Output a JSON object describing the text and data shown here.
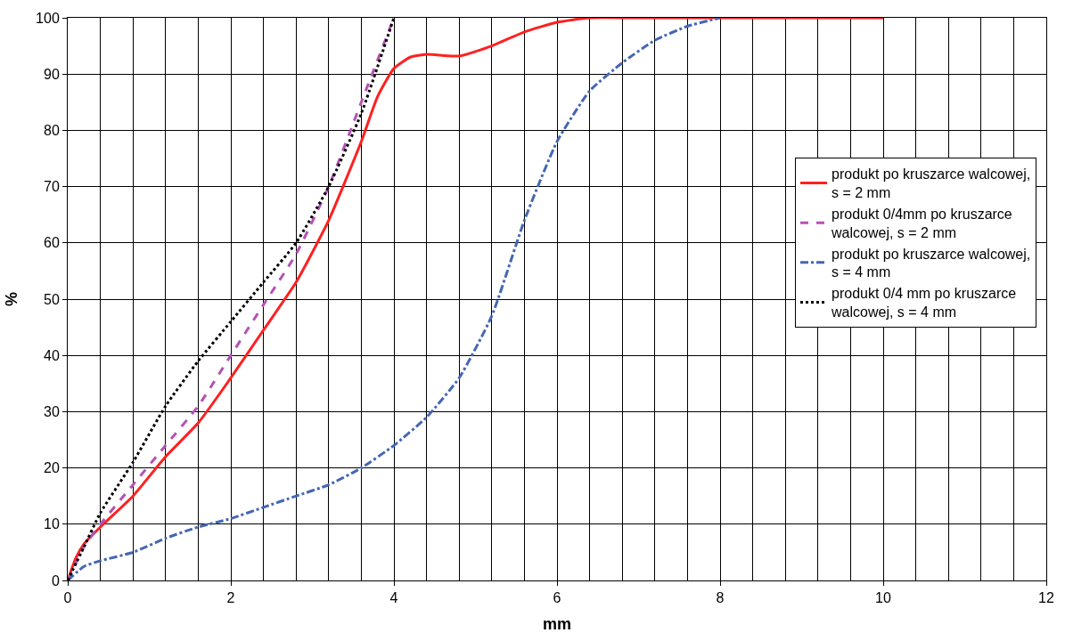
{
  "chart_data": {
    "type": "line",
    "xlabel": "mm",
    "ylabel": "%",
    "xlim": [
      0,
      12
    ],
    "xticks": [
      0,
      2,
      4,
      6,
      8,
      10,
      12
    ],
    "ylim": [
      0,
      100
    ],
    "yticks": [
      0,
      10,
      20,
      30,
      40,
      50,
      60,
      70,
      80,
      90,
      100
    ],
    "grid": true,
    "legend": "right",
    "marker": "none",
    "series": [
      {
        "name": "produkt po kruszarce walcowej, s = 2 mm",
        "color": "#ff2020",
        "line_style": "solid",
        "x": [
          0,
          0.1,
          0.2,
          0.4,
          0.8,
          1.2,
          1.6,
          2,
          2.4,
          2.8,
          3.2,
          3.6,
          3.8,
          4,
          4.2,
          4.4,
          4.8,
          5.2,
          5.6,
          6,
          6.4,
          7,
          8,
          10
        ],
        "values": [
          0,
          4,
          6.5,
          9.5,
          15,
          22,
          28,
          36,
          44.5,
          53,
          64,
          78,
          86,
          91,
          93,
          93.5,
          93.2,
          95,
          97.5,
          99.2,
          100,
          100,
          100,
          100
        ]
      },
      {
        "name": "produkt 0/4mm po kruszarce walcowej, s = 2 mm",
        "color": "#b452b4",
        "line_style": "dashed",
        "x": [
          0,
          0.2,
          0.4,
          0.8,
          1.2,
          1.6,
          2,
          2.4,
          2.8,
          3.2,
          3.6,
          4
        ],
        "values": [
          0,
          6,
          10,
          17,
          24,
          31,
          40,
          49,
          58,
          70,
          85,
          100
        ]
      },
      {
        "name": "produkt po kruszarce walcowej, s = 4 mm",
        "color": "#4466b4",
        "line_style": "dashdot",
        "x": [
          0,
          0.2,
          0.4,
          0.8,
          1.2,
          1.6,
          2,
          2.4,
          2.8,
          3.2,
          3.6,
          4,
          4.4,
          4.8,
          5.2,
          5.6,
          6,
          6.4,
          6.8,
          7.2,
          7.6,
          8
        ],
        "values": [
          0,
          2.5,
          3.5,
          5,
          7.5,
          9.5,
          11,
          13,
          15,
          17,
          20,
          24,
          29,
          36,
          47,
          64,
          78,
          87,
          92,
          96,
          98.5,
          100
        ]
      },
      {
        "name": "produkt 0/4 mm po kruszarce walcowej, s = 4 mm",
        "color": "#000000",
        "line_style": "dotted",
        "x": [
          0,
          0.2,
          0.4,
          0.8,
          1.2,
          1.6,
          2,
          2.4,
          2.8,
          3.2,
          3.6,
          4
        ],
        "values": [
          0,
          6,
          12,
          21,
          31,
          39,
          46,
          53,
          60,
          70,
          83,
          100
        ]
      }
    ]
  }
}
